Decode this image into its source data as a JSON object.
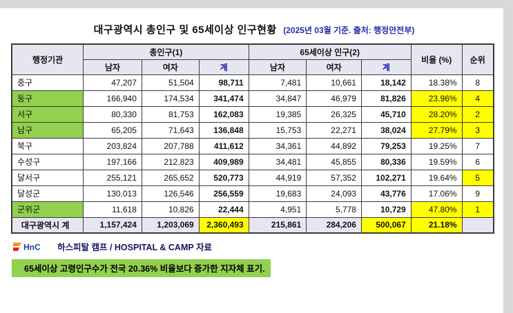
{
  "page": {
    "title": "대구광역시 총인구 및 65세이상 인구현황",
    "subtitle": "(2025년 03월 기준. 출처: 행정안전부)"
  },
  "colors": {
    "highlight_green": "#92d050",
    "highlight_yellow": "#ffff00",
    "header_bg": "#e6e6f0",
    "blue_text": "#1616b8"
  },
  "table": {
    "headers": {
      "admin": "행정기관",
      "total_group": "총인구(1)",
      "elderly_group": "65세이상 인구(2)",
      "male": "남자",
      "female": "여자",
      "sum": "계",
      "male2": "남자",
      "female2": "여자",
      "sum2": "계",
      "ratio": "비율 (%)",
      "rank": "순위"
    },
    "rows": [
      {
        "name": "중구",
        "green": false,
        "t_male": "47,207",
        "t_female": "51,504",
        "t_sum": "98,711",
        "e_male": "7,481",
        "e_female": "10,661",
        "e_sum": "18,142",
        "ratio": "18.38%",
        "rank": "8",
        "ratio_hl": false,
        "rank_hl": false
      },
      {
        "name": "동구",
        "green": true,
        "t_male": "166,940",
        "t_female": "174,534",
        "t_sum": "341,474",
        "e_male": "34,847",
        "e_female": "46,979",
        "e_sum": "81,826",
        "ratio": "23.96%",
        "rank": "4",
        "ratio_hl": true,
        "rank_hl": true
      },
      {
        "name": "서구",
        "green": true,
        "t_male": "80,330",
        "t_female": "81,753",
        "t_sum": "162,083",
        "e_male": "19,385",
        "e_female": "26,325",
        "e_sum": "45,710",
        "ratio": "28.20%",
        "rank": "2",
        "ratio_hl": true,
        "rank_hl": true
      },
      {
        "name": "남구",
        "green": true,
        "t_male": "65,205",
        "t_female": "71,643",
        "t_sum": "136,848",
        "e_male": "15,753",
        "e_female": "22,271",
        "e_sum": "38,024",
        "ratio": "27.79%",
        "rank": "3",
        "ratio_hl": true,
        "rank_hl": true
      },
      {
        "name": "북구",
        "green": false,
        "t_male": "203,824",
        "t_female": "207,788",
        "t_sum": "411,612",
        "e_male": "34,361",
        "e_female": "44,892",
        "e_sum": "79,253",
        "ratio": "19.25%",
        "rank": "7",
        "ratio_hl": false,
        "rank_hl": false
      },
      {
        "name": "수성구",
        "green": false,
        "t_male": "197,166",
        "t_female": "212,823",
        "t_sum": "409,989",
        "e_male": "34,481",
        "e_female": "45,855",
        "e_sum": "80,336",
        "ratio": "19.59%",
        "rank": "6",
        "ratio_hl": false,
        "rank_hl": false
      },
      {
        "name": "달서구",
        "green": false,
        "t_male": "255,121",
        "t_female": "265,652",
        "t_sum": "520,773",
        "e_male": "44,919",
        "e_female": "57,352",
        "e_sum": "102,271",
        "ratio": "19.64%",
        "rank": "5",
        "ratio_hl": false,
        "rank_hl": true
      },
      {
        "name": "달성군",
        "green": false,
        "t_male": "130,013",
        "t_female": "126,546",
        "t_sum": "256,559",
        "e_male": "19,683",
        "e_female": "24,093",
        "e_sum": "43,776",
        "ratio": "17.06%",
        "rank": "9",
        "ratio_hl": false,
        "rank_hl": false
      },
      {
        "name": "군위군",
        "green": true,
        "t_male": "11,618",
        "t_female": "10,826",
        "t_sum": "22,444",
        "e_male": "4,951",
        "e_female": "5,778",
        "e_sum": "10,729",
        "ratio": "47.80%",
        "rank": "1",
        "ratio_hl": true,
        "rank_hl": true
      }
    ],
    "total": {
      "name": "대구광역시 계",
      "green": false,
      "t_male": "1,157,424",
      "t_female": "1,203,069",
      "t_sum": "2,360,493",
      "t_sum_hl": true,
      "e_male": "215,861",
      "e_female": "284,206",
      "e_sum": "500,067",
      "e_sum_hl": true,
      "ratio": "21.18%",
      "ratio_hl": true,
      "rank": "",
      "rank_hl": false
    }
  },
  "footer": {
    "logo_text": "HnC",
    "source": "하스피탈 캠프 / HOSPITAL & CAMP 자료",
    "note": "65세이상 고령인구수가 전국 20.36% 비율보다 증가한 지자체 표기."
  }
}
